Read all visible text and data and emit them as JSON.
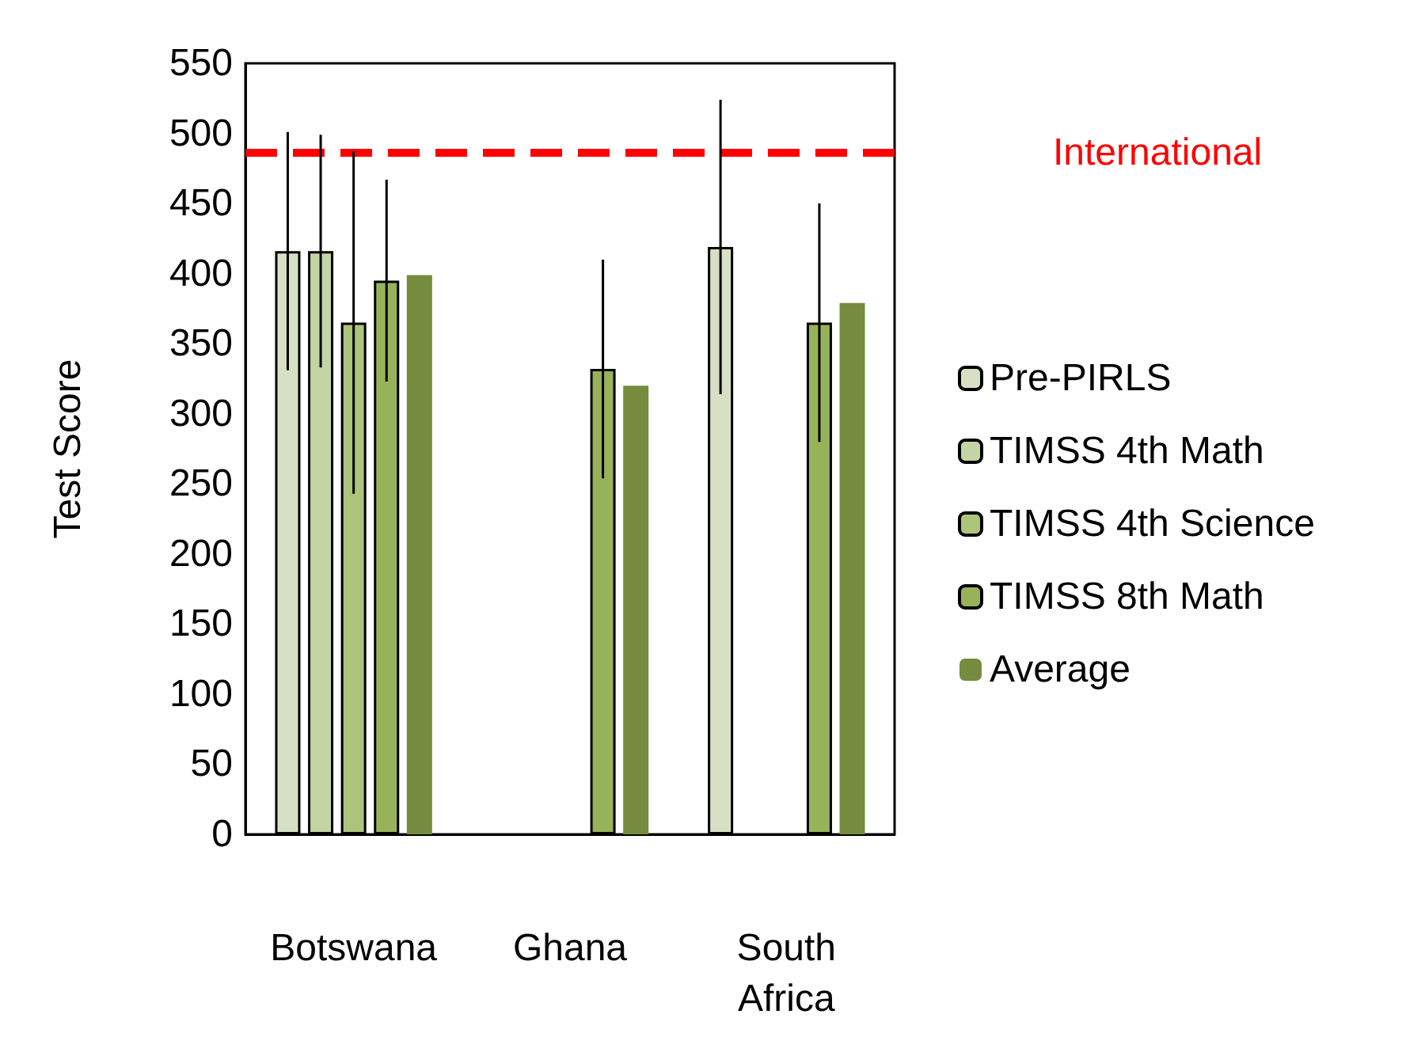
{
  "chart_data": {
    "type": "bar",
    "ylabel": "Test Score",
    "categories": [
      "Botswana",
      "Ghana",
      "South\nAfrica"
    ],
    "series": [
      {
        "name": "Pre-PIRLS",
        "color": "#d7e0c4",
        "values": [
          416,
          null,
          419
        ],
        "errors": [
          85,
          null,
          105
        ]
      },
      {
        "name": "TIMSS 4th Math",
        "color": "#c4d4a4",
        "values": [
          416,
          null,
          null
        ],
        "errors": [
          83,
          null,
          null
        ]
      },
      {
        "name": "TIMSS 4th Science",
        "color": "#acc47c",
        "values": [
          365,
          null,
          null
        ],
        "errors": [
          122,
          null,
          null
        ]
      },
      {
        "name": "TIMSS 8th Math",
        "color": "#98b25a",
        "values": [
          395,
          332,
          365
        ],
        "errors": [
          72,
          78,
          85
        ]
      },
      {
        "name": "Average",
        "color": "#758c3e",
        "values": [
          399,
          320,
          379
        ]
      }
    ],
    "ylim": [
      0,
      550
    ],
    "yticks": [
      0,
      50,
      100,
      150,
      200,
      250,
      300,
      350,
      400,
      450,
      500,
      550
    ],
    "ref_lines": [
      {
        "axis": "y",
        "value": 486,
        "label": "International",
        "color": "#ff0000",
        "line_style": "dashed"
      }
    ],
    "grid": false,
    "legend": "right"
  }
}
